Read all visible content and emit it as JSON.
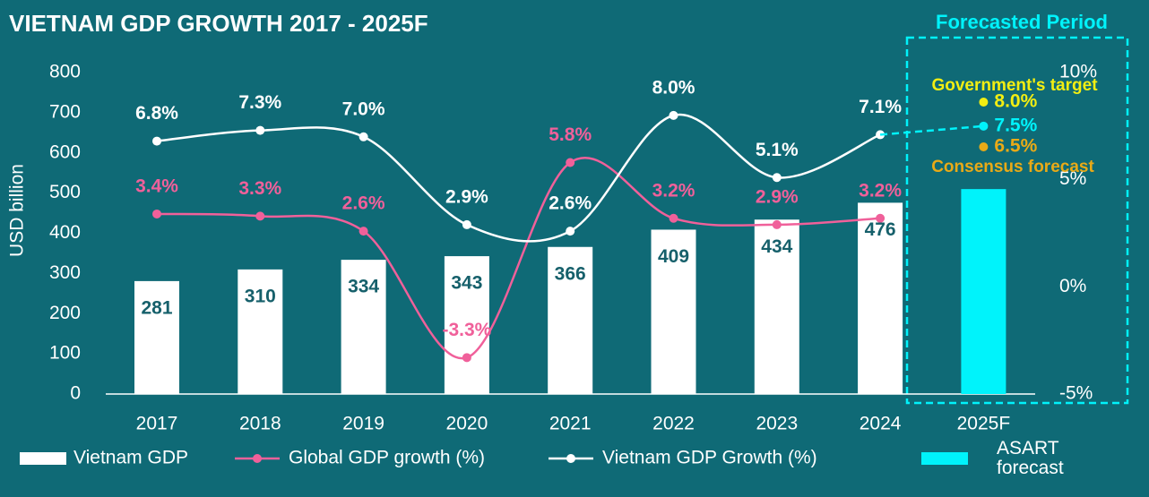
{
  "chart_data": {
    "type": "bar",
    "title": "VIETNAM GDP GROWTH 2017 - 2025F",
    "ylabel": "USD billion",
    "categories": [
      "2017",
      "2018",
      "2019",
      "2020",
      "2021",
      "2022",
      "2023",
      "2024",
      "2025F"
    ],
    "ylim": [
      0,
      800
    ],
    "yticks": [
      0,
      100,
      200,
      300,
      400,
      500,
      600,
      700,
      800
    ],
    "y2lim": [
      -5,
      10
    ],
    "y2ticks": [
      {
        "value": -5,
        "label": "-5%"
      },
      {
        "value": 0,
        "label": "0%"
      },
      {
        "value": 5,
        "label": "5%"
      },
      {
        "value": 10,
        "label": "10%"
      }
    ],
    "series": [
      {
        "name": "Vietnam GDP",
        "type": "bar",
        "color": "#ffffff",
        "values": [
          281,
          310,
          334,
          343,
          366,
          409,
          434,
          476,
          null
        ]
      },
      {
        "name": "Global GDP growth (%)",
        "type": "line",
        "axis": "y2",
        "color": "#f0609a",
        "values": [
          3.4,
          3.3,
          2.6,
          -3.3,
          5.8,
          3.2,
          2.9,
          3.2,
          null
        ],
        "value_labels": [
          "3.4%",
          "3.3%",
          "2.6%",
          "-3.3%",
          "5.8%",
          "3.2%",
          "2.9%",
          "3.2%",
          null
        ]
      },
      {
        "name": "Vietnam GDP Growth (%)",
        "type": "line",
        "axis": "y2",
        "color": "#ffffff",
        "values": [
          6.8,
          7.3,
          7.0,
          2.9,
          2.6,
          8.0,
          5.1,
          7.1,
          null
        ],
        "value_labels": [
          "6.8%",
          "7.3%",
          "7.0%",
          "2.9%",
          "2.6%",
          "8.0%",
          "5.1%",
          "7.1%",
          null
        ]
      },
      {
        "name": "ASART forecast",
        "type": "bar",
        "color": "#00f3fb",
        "values": [
          null,
          null,
          null,
          null,
          null,
          null,
          null,
          null,
          510
        ]
      }
    ],
    "forecast_period": "Forecasted Period",
    "forecasts": [
      {
        "label": "Government's target",
        "value": 8.0,
        "value_label": "8.0%",
        "color": "#f2ee12"
      },
      {
        "value": 7.5,
        "value_label": "7.5%",
        "color": "#00f3fb"
      },
      {
        "label": "Consensus forecast",
        "value": 6.5,
        "value_label": "6.5%",
        "color": "#e9aa17"
      }
    ]
  }
}
